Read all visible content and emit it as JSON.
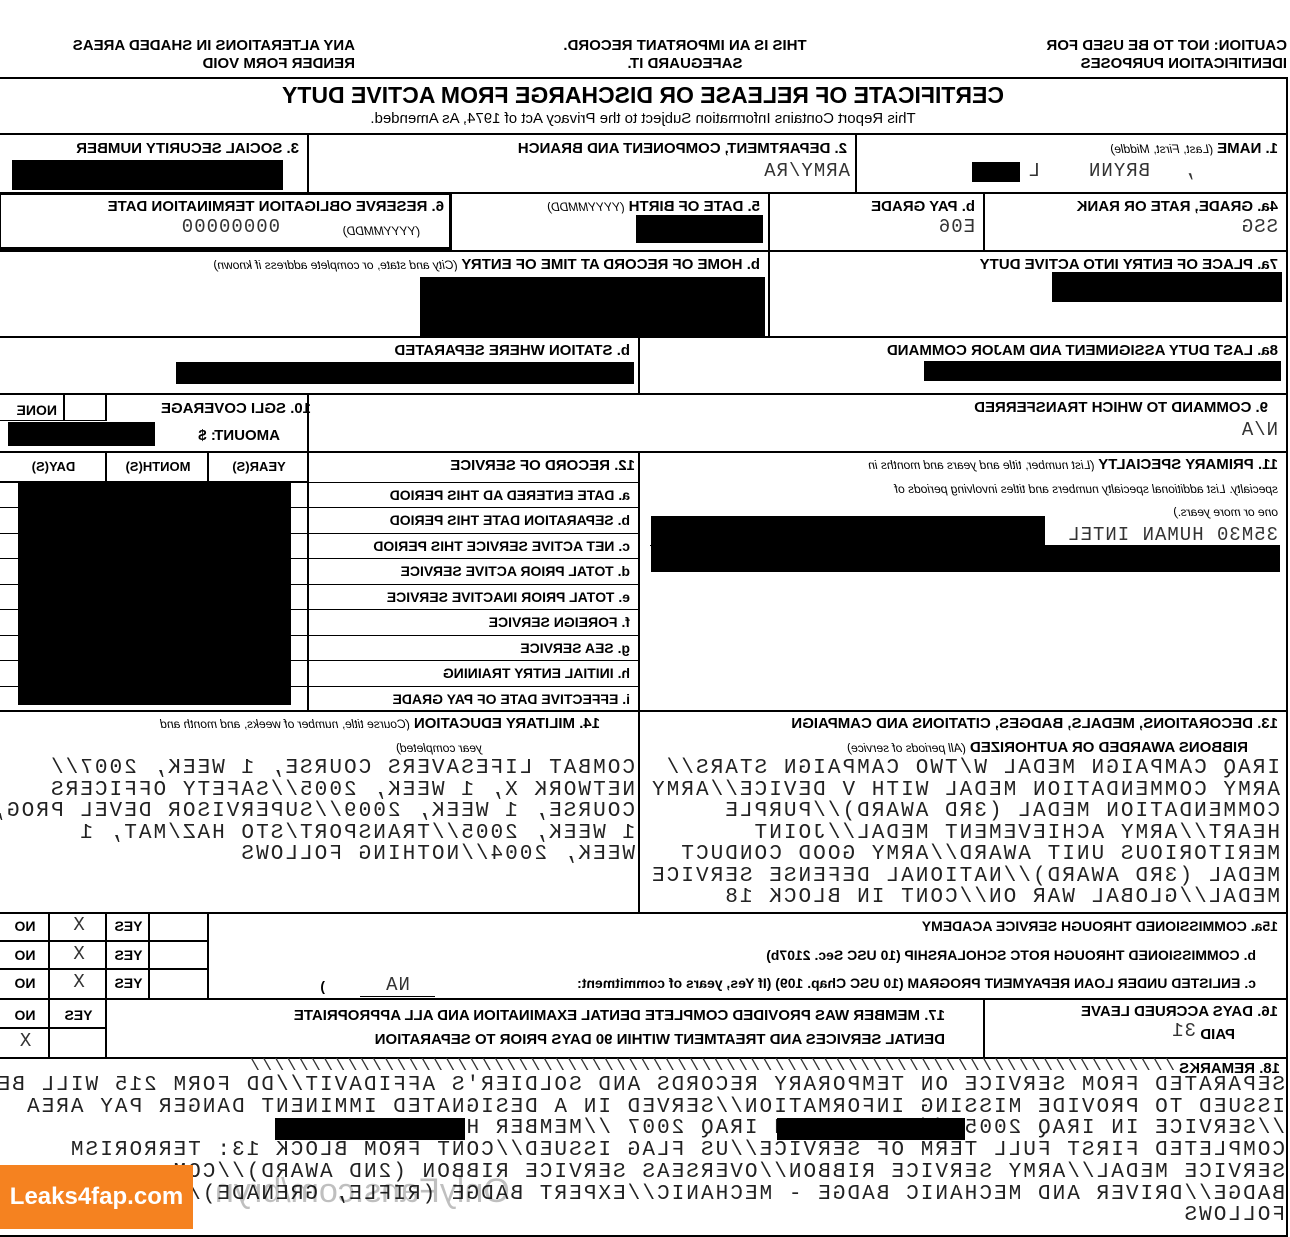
{
  "header": {
    "caution": [
      "CAUTION:  NOT TO BE USED FOR",
      "IDENTIFICATION PURPOSES"
    ],
    "important": [
      "THIS IS AN IMPORTANT RECORD.",
      "SAFEGUARD IT."
    ],
    "alterations": [
      "ANY ALTERATIONS IN SHADED AREAS",
      "RENDER FORM VOID"
    ]
  },
  "form": {
    "title": "CERTIFICATE OF RELEASE OR DISCHARGE FROM ACTIVE DUTY",
    "privacy": "This Report Contains Information Subject to the Privacy Act of 1974, As Amended."
  },
  "b1": {
    "label": "1.  NAME",
    "hint": "(Last, First, Middle)",
    "comma": ",",
    "first": "BRYNN",
    "middle": "L"
  },
  "b2": {
    "label": "2.  DEPARTMENT, COMPONENT AND BRANCH",
    "value": "ARMY/RA"
  },
  "b3": {
    "label": "3.  SOCIAL SECURITY NUMBER"
  },
  "b4a": {
    "label": "4a. GRADE, RATE OR RANK",
    "value": "SSG"
  },
  "b4b": {
    "label": "b.  PAY GRADE",
    "value": "E06"
  },
  "b5": {
    "label": "5.  DATE OF BIRTH",
    "hint": "(YYYYMMDD)"
  },
  "b6": {
    "label": "6.  RESERVE OBLIGATION TERMINATION DATE",
    "hint": "(YYYYMMDD)",
    "value": "00000000"
  },
  "b7a": {
    "label": "7a. PLACE OF ENTRY INTO ACTIVE DUTY"
  },
  "b7b": {
    "label": "b.  HOME OF RECORD AT TIME OF ENTRY",
    "hint": "(City and state, or complete address if known)"
  },
  "b8a": {
    "label": "8a. LAST DUTY ASSIGNMENT AND MAJOR COMMAND"
  },
  "b8b": {
    "label": "b.  STATION WHERE SEPARATED"
  },
  "b9": {
    "label": "9.  COMMAND TO WHICH TRANSFERRED",
    "value": "N/A"
  },
  "b10": {
    "label": "10. SGLI COVERAGE",
    "none": "NONE",
    "amount": "AMOUNT: $"
  },
  "b11": {
    "label": "11. PRIMARY SPECIALTY",
    "hint1": "(List number, title and years and months in",
    "hint2": "specialty.  List additional specialty numbers and titles involving periods of",
    "hint3": "one or more years.)",
    "value": "35M30 HUMAN INTEL"
  },
  "b12": {
    "label": "12. RECORD OF SERVICE",
    "cols": [
      "YEAR(S)",
      "MONTH(S)",
      "DAY(S)"
    ],
    "rows": [
      "a.  DATE ENTERED AD THIS PERIOD",
      "b.  SEPARATION DATE THIS PERIOD",
      "c.  NET ACTIVE SERVICE THIS PERIOD",
      "d.  TOTAL PRIOR ACTIVE SERVICE",
      "e.  TOTAL PRIOR INACTIVE SERVICE",
      "f.  FOREIGN SERVICE",
      "g.  SEA SERVICE",
      "h.  INITIAL ENTRY TRAINING",
      "i.  EFFECTIVE DATE OF PAY GRADE"
    ]
  },
  "b13": {
    "label1": "13. DECORATIONS, MEDALS, BADGES, CITATIONS AND CAMPAIGN",
    "label2": "RIBBONS AWARDED OR AUTHORIZED",
    "hint": "(All periods of service)",
    "lines": [
      "IRAQ CAMPAIGN MEDAL W/TWO CAMPAIGN STARS//",
      "ARMY COMMENDATION MEDAL WITH V DEVICE//ARMY",
      "COMMENDATION MEDAL (3RD AWARD)//PURPLE",
      "HEART//ARMY ACHIEVEMENT MEDAL//JOINT",
      "MERITORIOUS UNIT AWARD//ARMY GOOD CONDUCT",
      "MEDAL (3RD AWARD)//NATIONAL DEFENSE SERVICE",
      "MEDAL//GLOBAL WAR ON//CONT IN BLOCK 18"
    ]
  },
  "b14": {
    "label": "14. MILITARY EDUCATION",
    "hint1": "(Course title, number of weeks, and month and",
    "hint2": "year completed)",
    "lines": [
      "COMBAT LIFESAVERS COURSE, 1 WEEK, 2007//",
      "NETWORK X, 1 WEEK, 2005//SAFETY OFFICERS",
      "COURSE, 1 WEEK, 2009//SUPERVISOR DEVEL PROG,",
      "1 WEEK, 2005//TRANSPORT/STO HAZ/MAT, 1",
      "WEEK, 2004//NOTHING FOLLOWS"
    ]
  },
  "b15": {
    "rows": [
      {
        "label": "15a. COMMISSIONED THROUGH SERVICE ACADEMY",
        "yes": "YES",
        "mark": "X",
        "no": "NO"
      },
      {
        "label": "b.  COMMISSIONED THROUGH ROTC SCHOLARSHIP (10 USC Sec. 2107b)",
        "yes": "YES",
        "mark": "X",
        "no": "NO"
      },
      {
        "label": "c.  ENLISTED UNDER LOAN REPAYMENT PROGRAM (10 USC Chap. 109) (If Yes, years of commitment:",
        "commitment": "NA",
        "close": ")",
        "yes": "YES",
        "mark": "X",
        "no": "NO"
      }
    ]
  },
  "b16": {
    "label": "16.  DAYS ACCRUED LEAVE",
    "paid": "PAID",
    "value": "31"
  },
  "b17": {
    "label1": "17.  MEMBER WAS PROVIDED COMPLETE DENTAL EXAMINATION AND ALL APPROPRIATE",
    "label2": "DENTAL SERVICES AND TREATMENT WITHIN 90 DAYS PRIOR TO SEPARATION",
    "yes": "YES",
    "no": "NO",
    "mark": "X"
  },
  "b18": {
    "label": "18. REMARKS",
    "slashes": "////////////////////////////////////////////////////////////////////////////",
    "lines": [
      "SEPARATED FROM SERVICE ON TEMPORARY RECORDS AND SOLDIER'S AFFIDAVIT//DD FORM 215 WILL BE",
      "ISSUED TO PROVIDE MISSING INFORMATION//SERVED IN A DESIGNATED IMMINENT DANGER PAY AREA",
      "//SERVICE IN IRAQ 2005              //SERVICE IN IRAQ 2007              //MEMBER HAS",
      "COMPLETED FIRST FULL TERM OF SERVICE//US FLAG ISSUED//CONT FROM BLOCK 13: TERRORISM",
      "SERVICE MEDAL//ARMY SERVICE RIBBON//OVERSEAS SERVICE RIBBON (2ND AWARD)//COM",
      "BADGE//DRIVER AND MECHANIC BADGE - MECHANIC//EXPERT BADGE (RIFLE, GRENADE)//",
      "FOLLOWS"
    ]
  },
  "watermark": {
    "site": "Leaks4fap.com",
    "overlay": "OnlyFans.com/bryn",
    "badge_color": "#f58220"
  }
}
